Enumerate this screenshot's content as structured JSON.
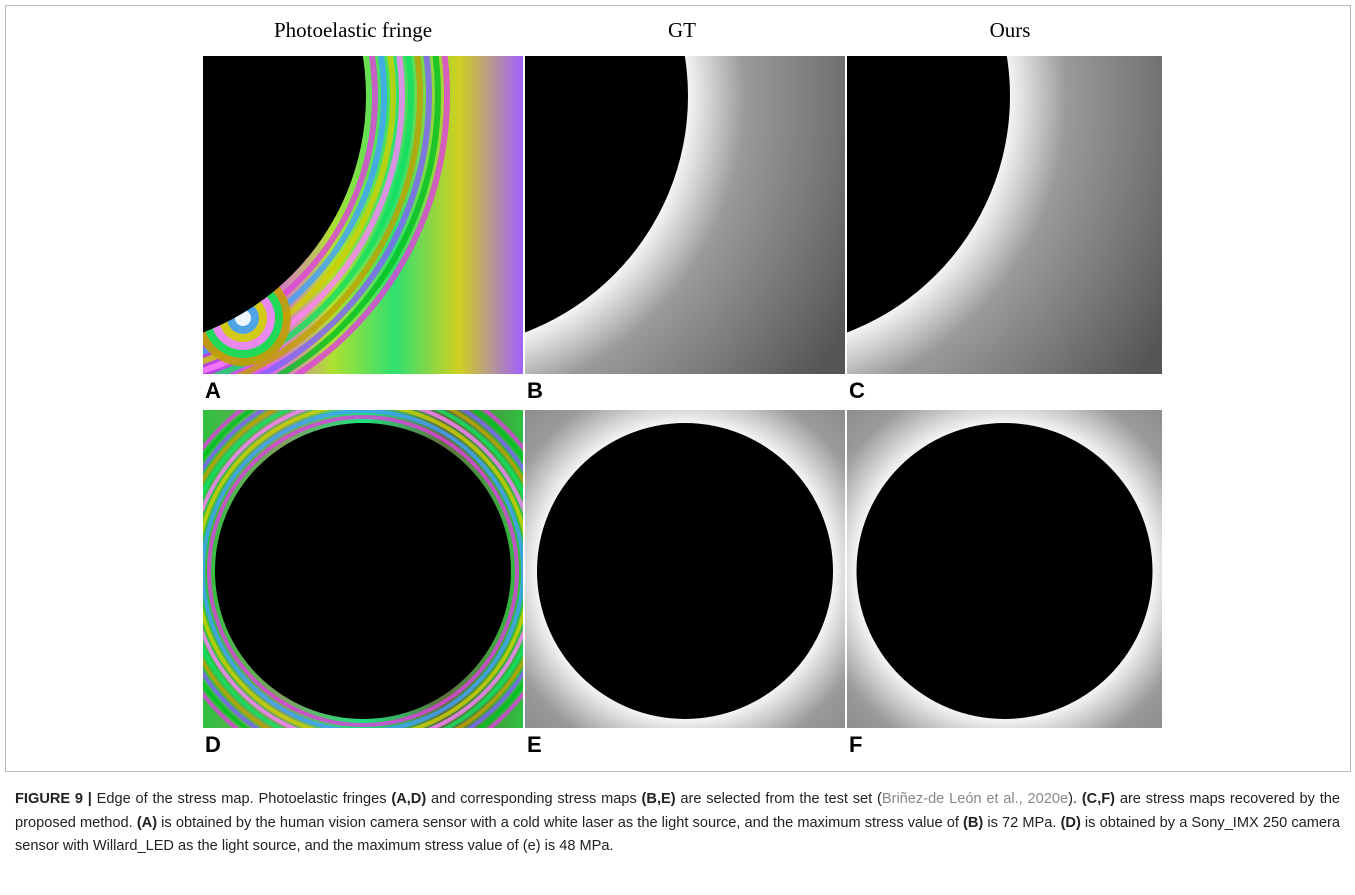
{
  "figure": {
    "column_titles": [
      "Photoelastic fringe",
      "GT",
      "Ours"
    ],
    "panel_letters": [
      "A",
      "B",
      "C",
      "D",
      "E",
      "F"
    ]
  },
  "caption": {
    "runs": [
      {
        "text": "FIGURE 9 | ",
        "bold": true
      },
      {
        "text": "Edge of the stress map. Photoelastic fringes "
      },
      {
        "text": "(A,D)",
        "bold": true
      },
      {
        "text": " and corresponding stress maps "
      },
      {
        "text": "(B,E)",
        "bold": true
      },
      {
        "text": " are selected from the test set ("
      },
      {
        "text": "Briñez-de León et al., 2020e",
        "link": true
      },
      {
        "text": "). "
      },
      {
        "text": "(C,F)",
        "bold": true
      },
      {
        "text": " are stress maps recovered by the proposed method. "
      },
      {
        "text": "(A)",
        "bold": true
      },
      {
        "text": " is obtained by the human vision camera sensor with a cold white laser as the light source, and the maximum stress value of "
      },
      {
        "text": "(B)",
        "bold": true
      },
      {
        "text": " is 72 MPa. "
      },
      {
        "text": "(D)",
        "bold": true
      },
      {
        "text": " is obtained by a Sony_IMX 250 camera sensor with Willard_LED as the light source, and the maximum stress value of (e) is 48 MPa."
      }
    ]
  }
}
